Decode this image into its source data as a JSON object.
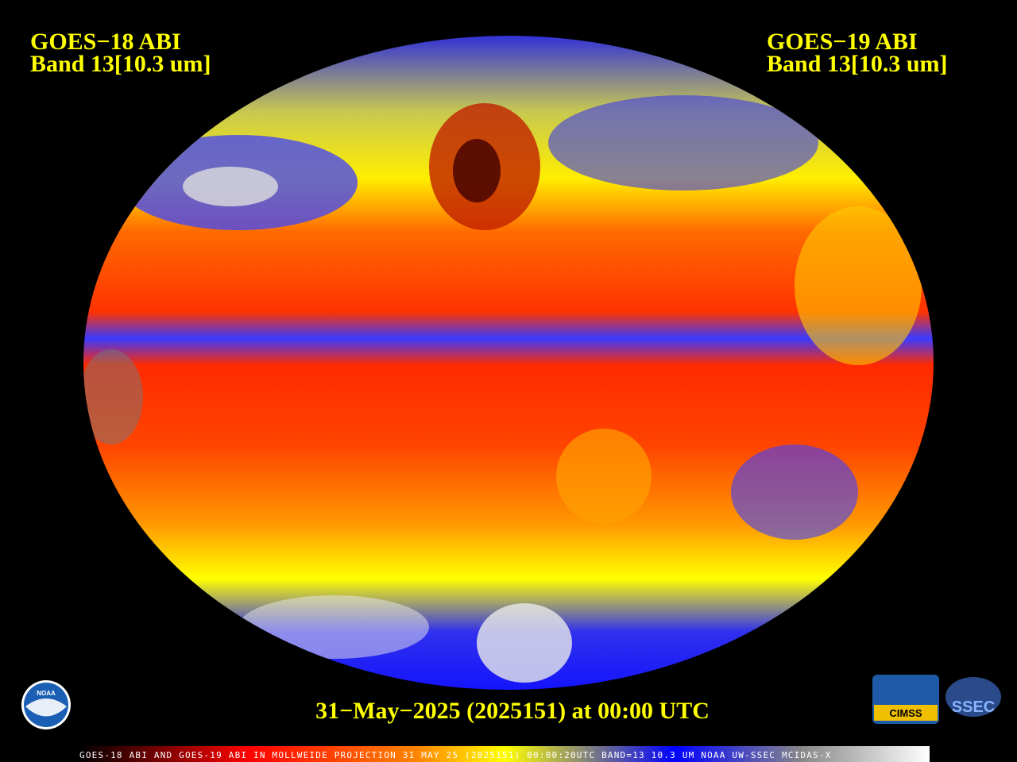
{
  "left_label": {
    "satellite": "GOES−18 ABI",
    "band": "Band 13[10.3 um]"
  },
  "right_label": {
    "satellite": "GOES−19 ABI",
    "band": "Band 13[10.3 um]"
  },
  "timestamp": "31−May−2025 (2025151) at 00:00 UTC",
  "footer": "GOES-18 ABI AND GOES-19 ABI IN MOLLWEIDE PROJECTION 31 MAY 25 (2025151) 00:00:20UTC BAND=13 10.3 UM NOAA UW-SSEC MCIDAS-X",
  "logos": {
    "noaa": "NOAA",
    "cimss": "CIMSS",
    "ssec": "SSEC"
  }
}
